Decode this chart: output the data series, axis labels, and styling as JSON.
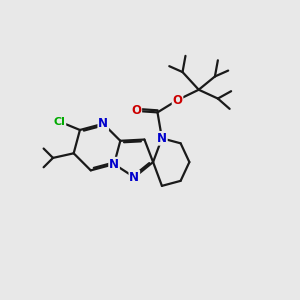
{
  "background_color": "#e8e8e8",
  "bond_color": "#1a1a1a",
  "nitrogen_color": "#0000cc",
  "oxygen_color": "#cc0000",
  "chlorine_color": "#00aa00",
  "line_width": 1.6,
  "font_size_atom": 8.5,
  "xlim": [
    0,
    10
  ],
  "ylim": [
    0,
    10
  ]
}
